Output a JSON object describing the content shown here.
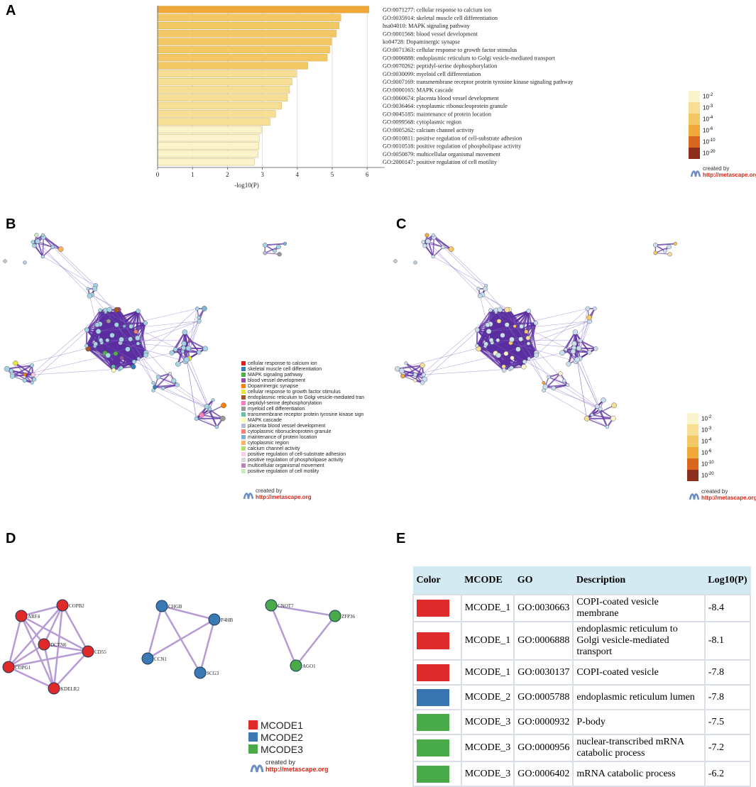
{
  "panels": {
    "a": "A",
    "b": "B",
    "c": "C",
    "d": "D",
    "e": "E"
  },
  "credit": {
    "line1": "created by",
    "line2": "http://metascape.org"
  },
  "scale": {
    "colors": [
      "#fbf3cc",
      "#f7de95",
      "#f4c765",
      "#f0a83a",
      "#d8661f",
      "#8c2d1d"
    ],
    "labels": [
      "10",
      "10",
      "10",
      "10",
      "10",
      "10"
    ],
    "exps": [
      "-2",
      "-3",
      "-4",
      "-6",
      "-10",
      "-20"
    ]
  },
  "chart_data": {
    "type": "bar",
    "orientation": "horizontal",
    "xlabel": "-log10(P)",
    "xlim": [
      0,
      6.5
    ],
    "xticks": [
      "0",
      "1",
      "2",
      "3",
      "4",
      "5",
      "6"
    ],
    "categories": [
      "GO:0071277: cellular response to calcium ion",
      "GO:0035914: skeletal muscle cell differentiation",
      "hsa04010: MAPK signaling pathway",
      "GO:0001568: blood vessel development",
      "ko04728: Dopaminergic synapse",
      "GO:0071363: cellular response to growth factor stimulus",
      "GO:0006888: endoplasmic reticulum to Golgi vesicle-mediated transport",
      "GO:0070262: peptidyl-serine dephosphorylation",
      "GO:0030099: myeloid cell differentiation",
      "GO:0007169: transmembrane receptor protein tyrosine kinase signaling pathway",
      "GO:0000165: MAPK cascade",
      "GO:0060674: placenta blood vessel development",
      "GO:0036464: cytoplasmic ribonucleoprotein granule",
      "GO:0045185: maintenance of protein location",
      "GO:0099568: cytoplasmic region",
      "GO:0005262: calcium channel activity",
      "GO:0010811: positive regulation of cell-substrate adhesion",
      "GO:0010518: positive regulation of phospholipase activity",
      "GO:0050879: multicellular organismal movement",
      "GO:2000147: positive regulation of cell motility"
    ],
    "values": [
      6.05,
      5.25,
      5.2,
      5.12,
      4.98,
      4.93,
      4.86,
      4.3,
      3.97,
      3.85,
      3.78,
      3.72,
      3.55,
      3.38,
      3.22,
      2.97,
      2.91,
      2.9,
      2.87,
      2.77
    ],
    "bar_colors": [
      "#f0a83a",
      "#f4c765",
      "#f4c765",
      "#f4c765",
      "#f4c765",
      "#f4c765",
      "#f4c765",
      "#f4c765",
      "#f7de95",
      "#f7de95",
      "#f7de95",
      "#f7de95",
      "#f7de95",
      "#f7de95",
      "#f7de95",
      "#fbf3cc",
      "#fbf3cc",
      "#fbf3cc",
      "#fbf3cc",
      "#fbf3cc"
    ]
  },
  "legendB": {
    "items": [
      {
        "label": "cellular response to calcium ion",
        "color": "#e41a1c"
      },
      {
        "label": "skeletal muscle cell differentiation",
        "color": "#377eb8"
      },
      {
        "label": "MAPK signaling pathway",
        "color": "#4daf4a"
      },
      {
        "label": "blood vessel development",
        "color": "#984ea3"
      },
      {
        "label": "Dopaminergic synapse",
        "color": "#ff7f00"
      },
      {
        "label": "cellular response to growth factor stimulus",
        "color": "#e8e838"
      },
      {
        "label": "endoplasmic reticulum to Golgi vesicle-mediated tran",
        "color": "#a65628"
      },
      {
        "label": "peptidyl-serine dephosphorylation",
        "color": "#f781bf"
      },
      {
        "label": "myeloid cell differentiation",
        "color": "#999999"
      },
      {
        "label": "transmembrane receptor protein tyrosine kinase sign",
        "color": "#66c2a5"
      },
      {
        "label": "MAPK cascade",
        "color": "#ffffb3"
      },
      {
        "label": "placenta blood vessel development",
        "color": "#bebada"
      },
      {
        "label": "cytoplasmic ribonucleoprotein granule",
        "color": "#fb8072"
      },
      {
        "label": "maintenance of protein location",
        "color": "#80b1d3"
      },
      {
        "label": "cytoplasmic region",
        "color": "#fdb462"
      },
      {
        "label": "calcium channel activity",
        "color": "#b3de69"
      },
      {
        "label": "positive regulation of cell-substrate adhesion",
        "color": "#fccde5"
      },
      {
        "label": "positive regulation of phospholipase activity",
        "color": "#d9d9d9"
      },
      {
        "label": "multicellular organismal movement",
        "color": "#bc80bd"
      },
      {
        "label": "positive regulation of cell motility",
        "color": "#ccebc5"
      }
    ]
  },
  "networkD": {
    "clusters": [
      {
        "color": "#e02a2a",
        "nodes": [
          "ARF4",
          "COPB2",
          "DCTN6",
          "CD55",
          "COPG1",
          "KDELR2"
        ]
      },
      {
        "color": "#3b79b4",
        "nodes": [
          "CHGB",
          "P4HB",
          "CCN1",
          "SCG3"
        ]
      },
      {
        "color": "#4aaa4a",
        "nodes": [
          "CNOT7",
          "ZFP36",
          "AGO1"
        ]
      }
    ],
    "legend": [
      {
        "label": "MCODE1",
        "color": "#e02a2a"
      },
      {
        "label": "MCODE2",
        "color": "#3b79b4"
      },
      {
        "label": "MCODE3",
        "color": "#4aaa4a"
      }
    ]
  },
  "tableE": {
    "headers": [
      "Color",
      "MCODE",
      "GO",
      "Description",
      "Log10(P)"
    ],
    "rows": [
      {
        "color": "#de2a2a",
        "mcode": "MCODE_1",
        "go": "GO:0030663",
        "desc": "COPI-coated vesicle membrane",
        "logp": "-8.4"
      },
      {
        "color": "#de2a2a",
        "mcode": "MCODE_1",
        "go": "GO:0006888",
        "desc": "endoplasmic reticulum to Golgi vesicle-mediated transport",
        "logp": "-8.1"
      },
      {
        "color": "#de2a2a",
        "mcode": "MCODE_1",
        "go": "GO:0030137",
        "desc": "COPI-coated vesicle",
        "logp": "-7.8"
      },
      {
        "color": "#3774b0",
        "mcode": "MCODE_2",
        "go": "GO:0005788",
        "desc": "endoplasmic reticulum lumen",
        "logp": "-7.8"
      },
      {
        "color": "#48aa48",
        "mcode": "MCODE_3",
        "go": "GO:0000932",
        "desc": "P-body",
        "logp": "-7.5"
      },
      {
        "color": "#48aa48",
        "mcode": "MCODE_3",
        "go": "GO:0000956",
        "desc": "nuclear-transcribed mRNA catabolic process",
        "logp": "-7.2"
      },
      {
        "color": "#48aa48",
        "mcode": "MCODE_3",
        "go": "GO:0006402",
        "desc": "mRNA catabolic process",
        "logp": "-6.2"
      }
    ]
  }
}
